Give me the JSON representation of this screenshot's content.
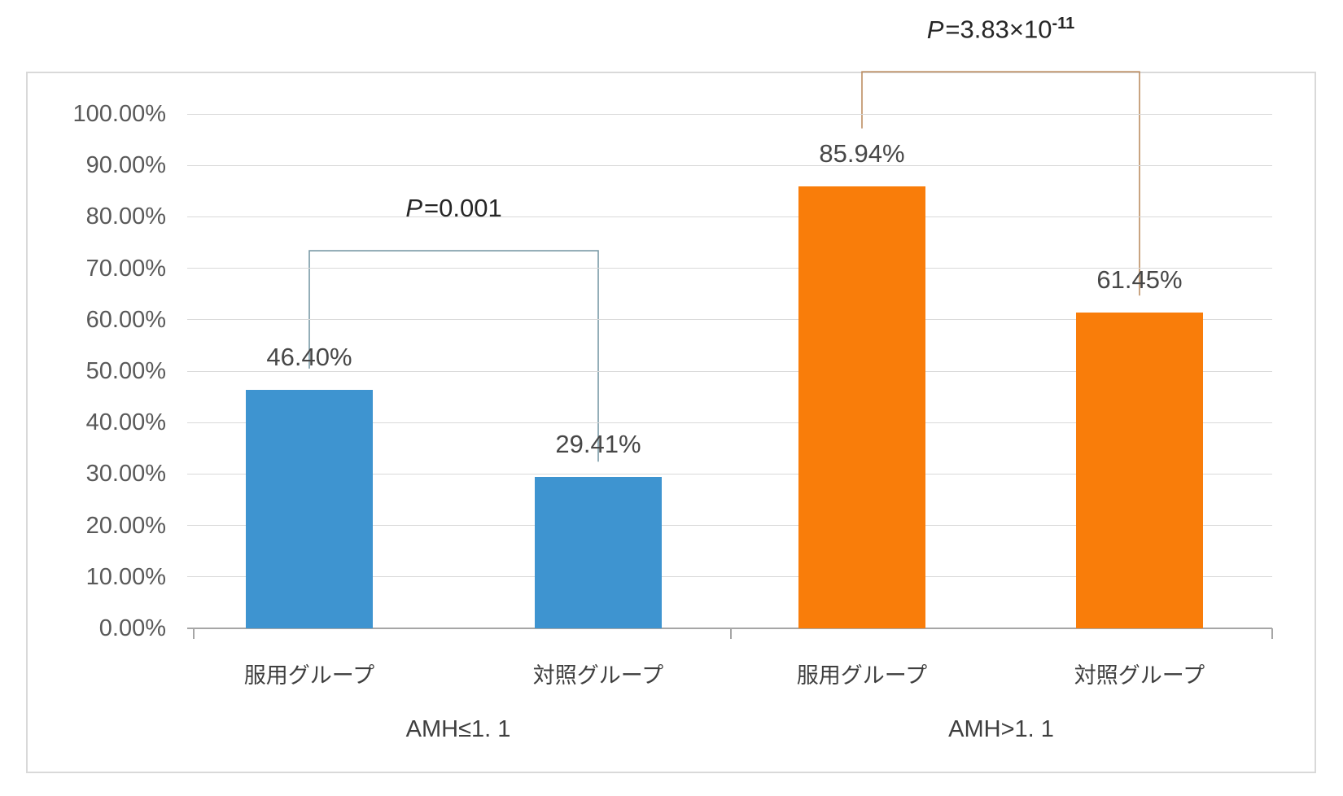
{
  "chart_data": {
    "type": "bar",
    "title": "",
    "y_axis": {
      "tick_labels": [
        "100.00%",
        "90.00%",
        "80.00%",
        "70.00%",
        "60.00%",
        "50.00%",
        "40.00%",
        "30.00%",
        "20.00%",
        "10.00%",
        "0.00%"
      ],
      "tick_values": [
        100,
        90,
        80,
        70,
        60,
        50,
        40,
        30,
        20,
        10,
        0
      ],
      "min": 0,
      "max": 100,
      "format": "percent",
      "grid": true
    },
    "groups": [
      {
        "label": "AMH≤1. 1",
        "bars": [
          {
            "category": "服用グループ",
            "value": 46.4,
            "data_label": "46.40%",
            "color": "#3E94D0"
          },
          {
            "category": "対照グループ",
            "value": 29.41,
            "data_label": "29.41%",
            "color": "#3E94D0"
          }
        ]
      },
      {
        "label": "AMH>1. 1",
        "bars": [
          {
            "category": "服用グループ",
            "value": 85.94,
            "data_label": "85.94%",
            "color": "#F97D0A"
          },
          {
            "category": "対照グループ",
            "value": 61.45,
            "data_label": "61.45%",
            "color": "#F97D0A"
          }
        ]
      }
    ],
    "p_brackets": [
      {
        "from_bar": 0,
        "to_bar": 1,
        "label_italic": "P",
        "label_text": "=0.001",
        "label_sup": "",
        "color": "#7A9AA6",
        "top_pct": 73.4,
        "from_end_pct": 50.5,
        "to_end_pct": 32.4
      },
      {
        "from_bar": 2,
        "to_bar": 3,
        "label_italic": "P",
        "label_text": "=3.83×10",
        "label_sup": "-11",
        "color": "#BC8D62",
        "top_pct": 108.2,
        "from_end_pct": 97.2,
        "to_end_pct": 64.7
      }
    ],
    "colors": {
      "series_blue": "#3E94D0",
      "series_orange": "#F97D0A",
      "gridline": "#D9D9D9",
      "baseline": "#A6A6A6",
      "axis_text": "#595959",
      "label_text": "#3F3F3F",
      "frame_border": "#D9D9D9"
    },
    "legend": null
  }
}
